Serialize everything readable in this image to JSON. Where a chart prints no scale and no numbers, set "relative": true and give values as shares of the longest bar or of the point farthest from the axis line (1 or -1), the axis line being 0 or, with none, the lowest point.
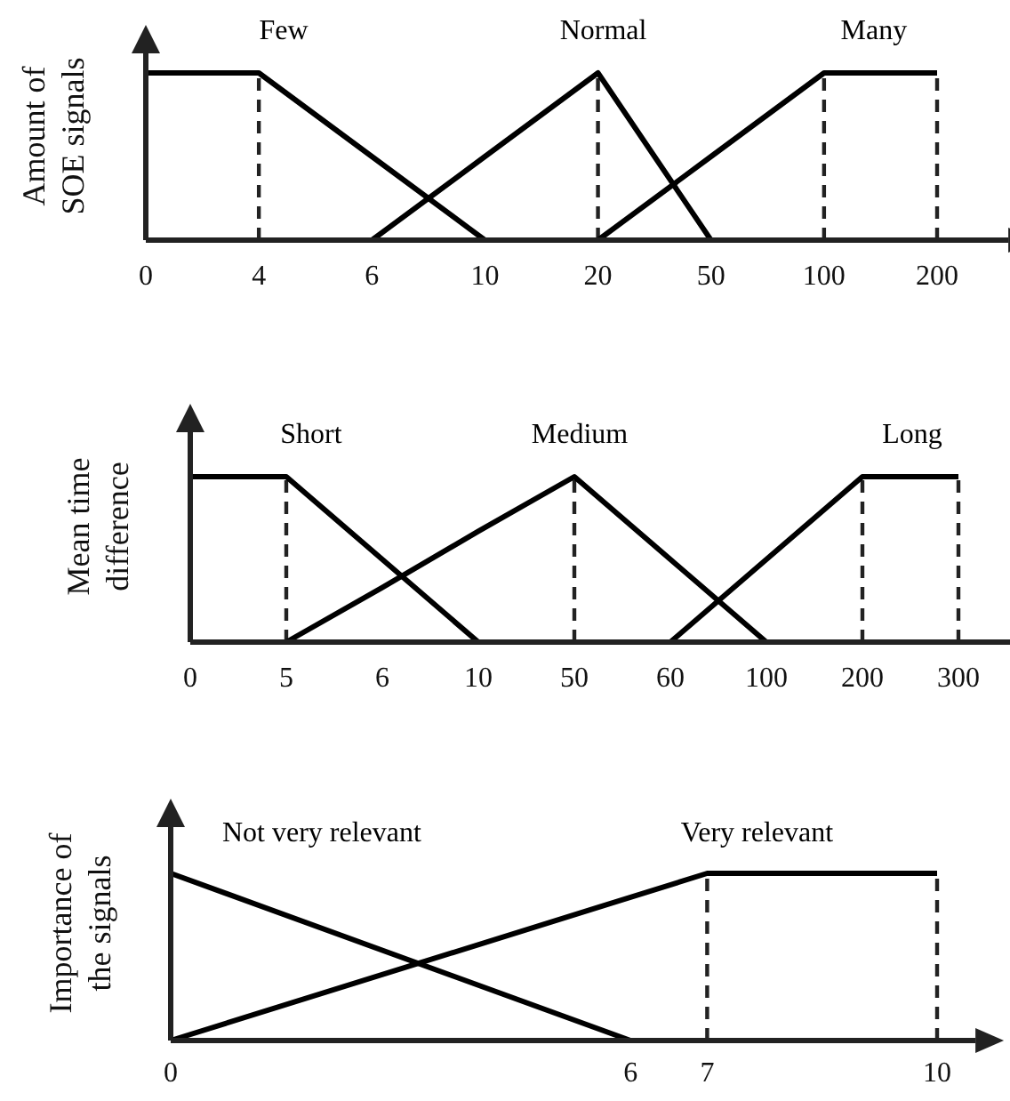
{
  "chart_data": [
    {
      "type": "line",
      "relative": true,
      "ylabel": "Amount of\nSOE signals",
      "categories": [
        "0",
        "4",
        "6",
        "10",
        "20",
        "50",
        "100",
        "200"
      ],
      "series": [
        {
          "name": "Few",
          "color": "#000000",
          "values": [
            1,
            1,
            0.5,
            0,
            null,
            null,
            null,
            null
          ]
        },
        {
          "name": "Normal",
          "color": "#000000",
          "values": [
            null,
            null,
            0,
            0.5,
            1,
            0,
            null,
            null
          ]
        },
        {
          "name": "Many",
          "color": "#000000",
          "values": [
            null,
            null,
            null,
            null,
            0,
            0.5,
            1,
            1
          ]
        }
      ],
      "ref_lines": [
        {
          "axis": "x",
          "value": "4",
          "line_style": "dashed"
        },
        {
          "axis": "x",
          "value": "20",
          "line_style": "dashed"
        },
        {
          "axis": "x",
          "value": "100",
          "line_style": "dashed"
        },
        {
          "axis": "x",
          "value": "200",
          "line_style": "dashed"
        }
      ]
    },
    {
      "type": "line",
      "relative": true,
      "ylabel": "Mean time\ndifference",
      "categories": [
        "0",
        "5",
        "6",
        "10",
        "50",
        "60",
        "100",
        "200",
        "300"
      ],
      "series": [
        {
          "name": "Short",
          "color": "#000000",
          "values": [
            1,
            1,
            0.5,
            0,
            null,
            null,
            null,
            null,
            null
          ]
        },
        {
          "name": "Medium",
          "color": "#000000",
          "values": [
            null,
            0,
            0.33,
            0.67,
            1,
            0.5,
            0,
            null,
            null
          ]
        },
        {
          "name": "Long",
          "color": "#000000",
          "values": [
            null,
            null,
            null,
            null,
            null,
            0,
            0.5,
            1,
            1
          ]
        }
      ],
      "ref_lines": [
        {
          "axis": "x",
          "value": "5",
          "line_style": "dashed"
        },
        {
          "axis": "x",
          "value": "50",
          "line_style": "dashed"
        },
        {
          "axis": "x",
          "value": "200",
          "line_style": "dashed"
        },
        {
          "axis": "x",
          "value": "300",
          "line_style": "dashed"
        }
      ]
    },
    {
      "type": "line",
      "relative": true,
      "ylabel": "Importance of\nthe signals",
      "xlim": [
        0,
        10.5
      ],
      "xticks": [
        0,
        6,
        7,
        10
      ],
      "series": [
        {
          "name": "Not very relevant",
          "color": "#000000",
          "x": [
            0,
            0,
            6
          ],
          "values": [
            0,
            1,
            0
          ]
        },
        {
          "name": "Very relevant",
          "color": "#000000",
          "x": [
            0,
            7,
            10
          ],
          "values": [
            0,
            1,
            1
          ]
        }
      ],
      "ref_lines": [
        {
          "axis": "x",
          "value": 7,
          "line_style": "dashed"
        },
        {
          "axis": "x",
          "value": 10,
          "line_style": "dashed"
        }
      ]
    }
  ]
}
